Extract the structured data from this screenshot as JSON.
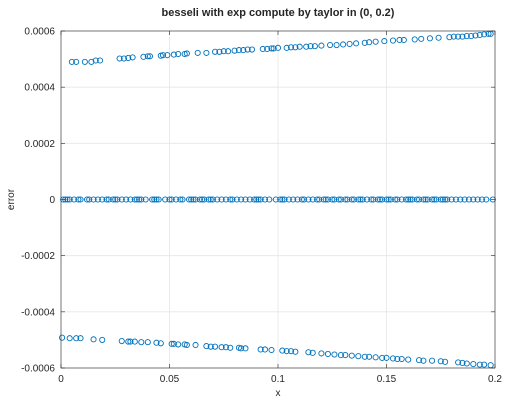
{
  "chart_data": {
    "type": "scatter",
    "title": "besseli with exp compute by taylor in (0, 0.2)",
    "xlabel": "x",
    "ylabel": "error",
    "xlim": [
      0,
      0.2
    ],
    "ylim": [
      -0.0006,
      0.0006
    ],
    "xticks": [
      "0",
      "0.05",
      "0.1",
      "0.15",
      "0.2"
    ],
    "yticks": [
      "-0.0006",
      "-0.0004",
      "-0.0002",
      "0",
      "0.0002",
      "0.0004",
      "0.0006"
    ],
    "grid": true,
    "marker": "open-circle",
    "marker_color": "#0072BD",
    "series": [
      {
        "x": [
          0.005,
          0.007,
          0.011,
          0.014,
          0.016,
          0.018,
          0.027,
          0.029,
          0.031,
          0.033,
          0.038,
          0.04,
          0.041,
          0.046,
          0.047,
          0.049,
          0.052,
          0.054,
          0.057,
          0.058,
          0.063,
          0.067,
          0.071,
          0.073,
          0.075,
          0.077,
          0.08,
          0.082,
          0.084,
          0.086,
          0.088,
          0.093,
          0.095,
          0.097,
          0.098,
          0.1,
          0.104,
          0.106,
          0.108,
          0.11,
          0.113,
          0.115,
          0.117,
          0.12,
          0.124,
          0.127,
          0.13,
          0.133,
          0.136,
          0.14,
          0.142,
          0.145,
          0.149,
          0.153,
          0.156,
          0.158,
          0.163,
          0.166,
          0.17,
          0.174,
          0.179,
          0.181,
          0.183,
          0.185,
          0.187,
          0.189,
          0.191,
          0.193,
          0.195,
          0.197,
          0.198
        ],
        "y": [
          0.00049,
          0.00049,
          0.00049,
          0.00049,
          0.000495,
          0.000495,
          0.000502,
          0.000502,
          0.000504,
          0.000506,
          0.000508,
          0.00051,
          0.00051,
          0.000512,
          0.000514,
          0.000514,
          0.000516,
          0.000518,
          0.000518,
          0.00052,
          0.000522,
          0.000522,
          0.000526,
          0.000526,
          0.000528,
          0.000528,
          0.00053,
          0.000532,
          0.000532,
          0.000534,
          0.000534,
          0.000536,
          0.000536,
          0.000538,
          0.000538,
          0.00054,
          0.00054,
          0.000542,
          0.000542,
          0.000544,
          0.000544,
          0.000546,
          0.000546,
          0.000548,
          0.00055,
          0.00055,
          0.000552,
          0.000554,
          0.000556,
          0.000558,
          0.00056,
          0.000562,
          0.000564,
          0.000566,
          0.000568,
          0.000568,
          0.00057,
          0.000572,
          0.000574,
          0.000576,
          0.000578,
          0.00058,
          0.00058,
          0.00058,
          0.000582,
          0.000582,
          0.000584,
          0.000586,
          0.000588,
          0.00059,
          0.00059
        ]
      },
      {
        "x": [
          0.001,
          0.002,
          0.003,
          0.004,
          0.006,
          0.008,
          0.009,
          0.012,
          0.013,
          0.015,
          0.017,
          0.019,
          0.021,
          0.022,
          0.024,
          0.025,
          0.026,
          0.028,
          0.03,
          0.032,
          0.034,
          0.035,
          0.036,
          0.037,
          0.039,
          0.042,
          0.043,
          0.044,
          0.045,
          0.048,
          0.05,
          0.051,
          0.053,
          0.055,
          0.056,
          0.059,
          0.06,
          0.061,
          0.062,
          0.064,
          0.065,
          0.066,
          0.068,
          0.069,
          0.07,
          0.072,
          0.074,
          0.076,
          0.078,
          0.079,
          0.081,
          0.083,
          0.085,
          0.087,
          0.089,
          0.09,
          0.091,
          0.092,
          0.094,
          0.096,
          0.099,
          0.101,
          0.102,
          0.103,
          0.105,
          0.107,
          0.109,
          0.111,
          0.112,
          0.114,
          0.116,
          0.118,
          0.119,
          0.121,
          0.122,
          0.123,
          0.125,
          0.126,
          0.128,
          0.129,
          0.131,
          0.132,
          0.134,
          0.135,
          0.137,
          0.138,
          0.139,
          0.141,
          0.143,
          0.144,
          0.146,
          0.147,
          0.148,
          0.15,
          0.151,
          0.152,
          0.154,
          0.155,
          0.157,
          0.159,
          0.16,
          0.161,
          0.162,
          0.164,
          0.165,
          0.167,
          0.168,
          0.169,
          0.171,
          0.172,
          0.173,
          0.175,
          0.176,
          0.177,
          0.178,
          0.18,
          0.182,
          0.184,
          0.186,
          0.188,
          0.19,
          0.192,
          0.194,
          0.196,
          0.199
        ],
        "y": [
          0,
          0,
          0,
          0,
          0,
          0,
          0,
          0,
          0,
          0,
          0,
          0,
          0,
          0,
          0,
          0,
          0,
          0,
          0,
          0,
          0,
          0,
          0,
          0,
          0,
          0,
          0,
          0,
          0,
          0,
          0,
          0,
          0,
          0,
          0,
          0,
          0,
          0,
          0,
          0,
          0,
          0,
          0,
          0,
          0,
          0,
          0,
          0,
          0,
          0,
          0,
          0,
          0,
          0,
          0,
          0,
          0,
          0,
          0,
          0,
          0,
          0,
          0,
          0,
          0,
          0,
          0,
          0,
          0,
          0,
          0,
          0,
          0,
          0,
          0,
          0,
          0,
          0,
          0,
          0,
          0,
          0,
          0,
          0,
          0,
          0,
          0,
          0,
          0,
          0,
          0,
          0,
          0,
          0,
          0,
          0,
          0,
          0,
          0,
          0,
          0,
          0,
          0,
          0,
          0,
          0,
          0,
          0,
          0,
          0,
          0,
          0,
          0,
          0,
          0,
          0,
          0,
          0,
          0,
          0,
          0,
          0,
          0,
          0,
          0
        ]
      },
      {
        "x": [
          0.0005,
          0.004,
          0.007,
          0.009,
          0.015,
          0.019,
          0.028,
          0.031,
          0.032,
          0.034,
          0.037,
          0.04,
          0.044,
          0.046,
          0.051,
          0.052,
          0.054,
          0.057,
          0.058,
          0.062,
          0.067,
          0.069,
          0.071,
          0.074,
          0.076,
          0.078,
          0.082,
          0.083,
          0.085,
          0.092,
          0.094,
          0.097,
          0.102,
          0.104,
          0.106,
          0.108,
          0.114,
          0.116,
          0.12,
          0.123,
          0.126,
          0.129,
          0.131,
          0.134,
          0.137,
          0.14,
          0.142,
          0.145,
          0.148,
          0.15,
          0.153,
          0.155,
          0.157,
          0.16,
          0.165,
          0.167,
          0.171,
          0.175,
          0.177,
          0.183,
          0.185,
          0.187,
          0.19,
          0.193,
          0.195,
          0.198
        ],
        "y": [
          -0.000492,
          -0.000494,
          -0.000494,
          -0.000494,
          -0.000498,
          -0.0005,
          -0.000504,
          -0.000506,
          -0.000506,
          -0.000506,
          -0.000508,
          -0.000508,
          -0.00051,
          -0.000512,
          -0.000514,
          -0.000514,
          -0.000516,
          -0.000516,
          -0.000518,
          -0.000518,
          -0.000522,
          -0.000524,
          -0.000524,
          -0.000526,
          -0.000526,
          -0.000528,
          -0.000528,
          -0.00053,
          -0.00053,
          -0.000534,
          -0.000534,
          -0.000536,
          -0.000538,
          -0.00054,
          -0.00054,
          -0.000542,
          -0.000544,
          -0.000546,
          -0.000548,
          -0.00055,
          -0.000552,
          -0.000554,
          -0.000554,
          -0.000556,
          -0.000558,
          -0.00056,
          -0.00056,
          -0.000562,
          -0.000564,
          -0.000564,
          -0.000566,
          -0.000568,
          -0.000568,
          -0.00057,
          -0.000572,
          -0.000574,
          -0.000574,
          -0.000576,
          -0.000578,
          -0.00058,
          -0.000582,
          -0.000584,
          -0.000586,
          -0.000588,
          -0.000588,
          -0.00059
        ]
      }
    ]
  }
}
